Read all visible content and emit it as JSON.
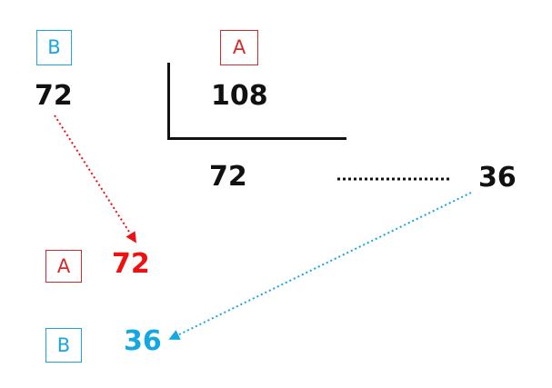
{
  "labels": {
    "b_top": "B",
    "a_top": "A",
    "a_result": "A",
    "b_result": "B"
  },
  "numbers": {
    "b_value": "72",
    "dividend": "108",
    "remainder": "72",
    "partial": "36",
    "result_a": "72",
    "result_b": "36"
  },
  "colors": {
    "blue": "#1aa7df",
    "red": "#d42a2a",
    "bright_red": "#ee1111",
    "black": "#111111"
  }
}
